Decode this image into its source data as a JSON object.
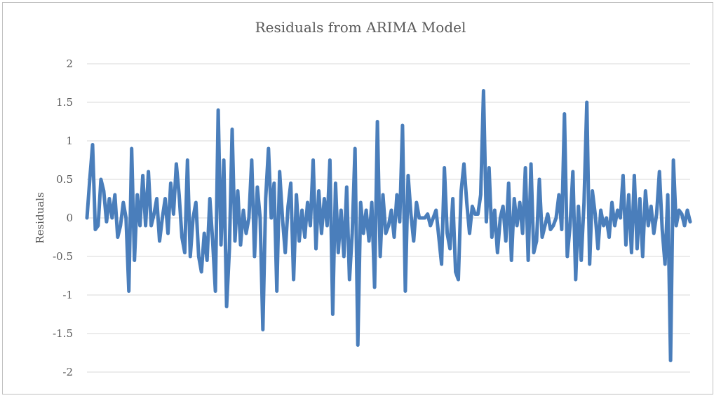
{
  "chart_data": {
    "type": "line",
    "title": "Residuals from ARIMA Model",
    "xlabel": "",
    "ylabel": "Residuals",
    "ylim": [
      -2,
      2
    ],
    "y_ticks": [
      "2",
      "1.5",
      "1",
      "0.5",
      "0",
      "-0.5",
      "-1",
      "-1.5",
      "-2"
    ],
    "grid": true,
    "legend": "none",
    "series_color": "#4a7ebb",
    "grid_color": "#d9d9d9",
    "series": [
      {
        "values": [
          0.0,
          0.5,
          0.95,
          -0.15,
          -0.1,
          0.5,
          0.35,
          -0.05,
          0.25,
          0.0,
          0.3,
          -0.25,
          -0.1,
          0.2,
          0.0,
          -0.95,
          0.9,
          -0.55,
          0.3,
          -0.1,
          0.55,
          -0.1,
          0.6,
          -0.1,
          0.05,
          0.25,
          -0.3,
          0.0,
          0.25,
          -0.2,
          0.45,
          0.05,
          0.7,
          0.3,
          -0.25,
          -0.45,
          0.75,
          -0.5,
          0.0,
          0.2,
          -0.5,
          -0.7,
          -0.2,
          -0.55,
          0.25,
          -0.3,
          -0.95,
          1.4,
          -0.35,
          0.75,
          -1.15,
          -0.4,
          1.15,
          -0.3,
          0.35,
          -0.35,
          0.1,
          -0.2,
          0.0,
          0.75,
          -0.5,
          0.4,
          0.0,
          -1.45,
          0.25,
          0.9,
          0.0,
          0.45,
          -0.95,
          0.6,
          0.0,
          -0.45,
          0.15,
          0.45,
          -0.8,
          0.3,
          -0.3,
          0.1,
          -0.25,
          0.2,
          -0.1,
          0.75,
          -0.4,
          0.35,
          -0.2,
          0.25,
          -0.1,
          0.75,
          -1.25,
          0.45,
          -0.45,
          0.1,
          -0.5,
          0.4,
          -0.8,
          -0.2,
          0.9,
          -1.65,
          0.2,
          -0.2,
          0.1,
          -0.3,
          0.2,
          -0.9,
          1.25,
          -0.5,
          0.3,
          -0.2,
          -0.1,
          0.1,
          -0.25,
          0.3,
          -0.05,
          1.2,
          -0.95,
          0.55,
          0.05,
          -0.3,
          0.2,
          0.0,
          0.0,
          0.0,
          0.05,
          -0.1,
          0.0,
          0.1,
          -0.25,
          -0.6,
          0.65,
          -0.2,
          -0.4,
          0.25,
          -0.7,
          -0.8,
          0.35,
          0.7,
          0.2,
          -0.2,
          0.15,
          0.05,
          0.05,
          0.3,
          1.65,
          -0.05,
          0.65,
          -0.25,
          0.1,
          -0.45,
          0.0,
          0.15,
          -0.3,
          0.45,
          -0.55,
          0.25,
          -0.1,
          0.2,
          -0.2,
          0.65,
          -0.55,
          0.7,
          -0.45,
          -0.3,
          0.5,
          -0.25,
          -0.1,
          0.05,
          -0.15,
          -0.1,
          0.0,
          0.3,
          -0.15,
          1.35,
          -0.5,
          -0.1,
          0.6,
          -0.8,
          0.15,
          -0.55,
          0.2,
          1.5,
          -0.6,
          0.35,
          0.05,
          -0.4,
          0.1,
          -0.1,
          0.0,
          -0.25,
          0.2,
          -0.1,
          0.1,
          0.0,
          0.55,
          -0.35,
          0.3,
          -0.45,
          0.55,
          -0.4,
          0.25,
          -0.5,
          0.35,
          -0.1,
          0.15,
          -0.2,
          0.05,
          0.6,
          -0.15,
          -0.6,
          0.3,
          -1.85,
          0.75,
          -0.1,
          0.1,
          0.05,
          -0.1,
          0.1,
          -0.05
        ]
      }
    ]
  }
}
